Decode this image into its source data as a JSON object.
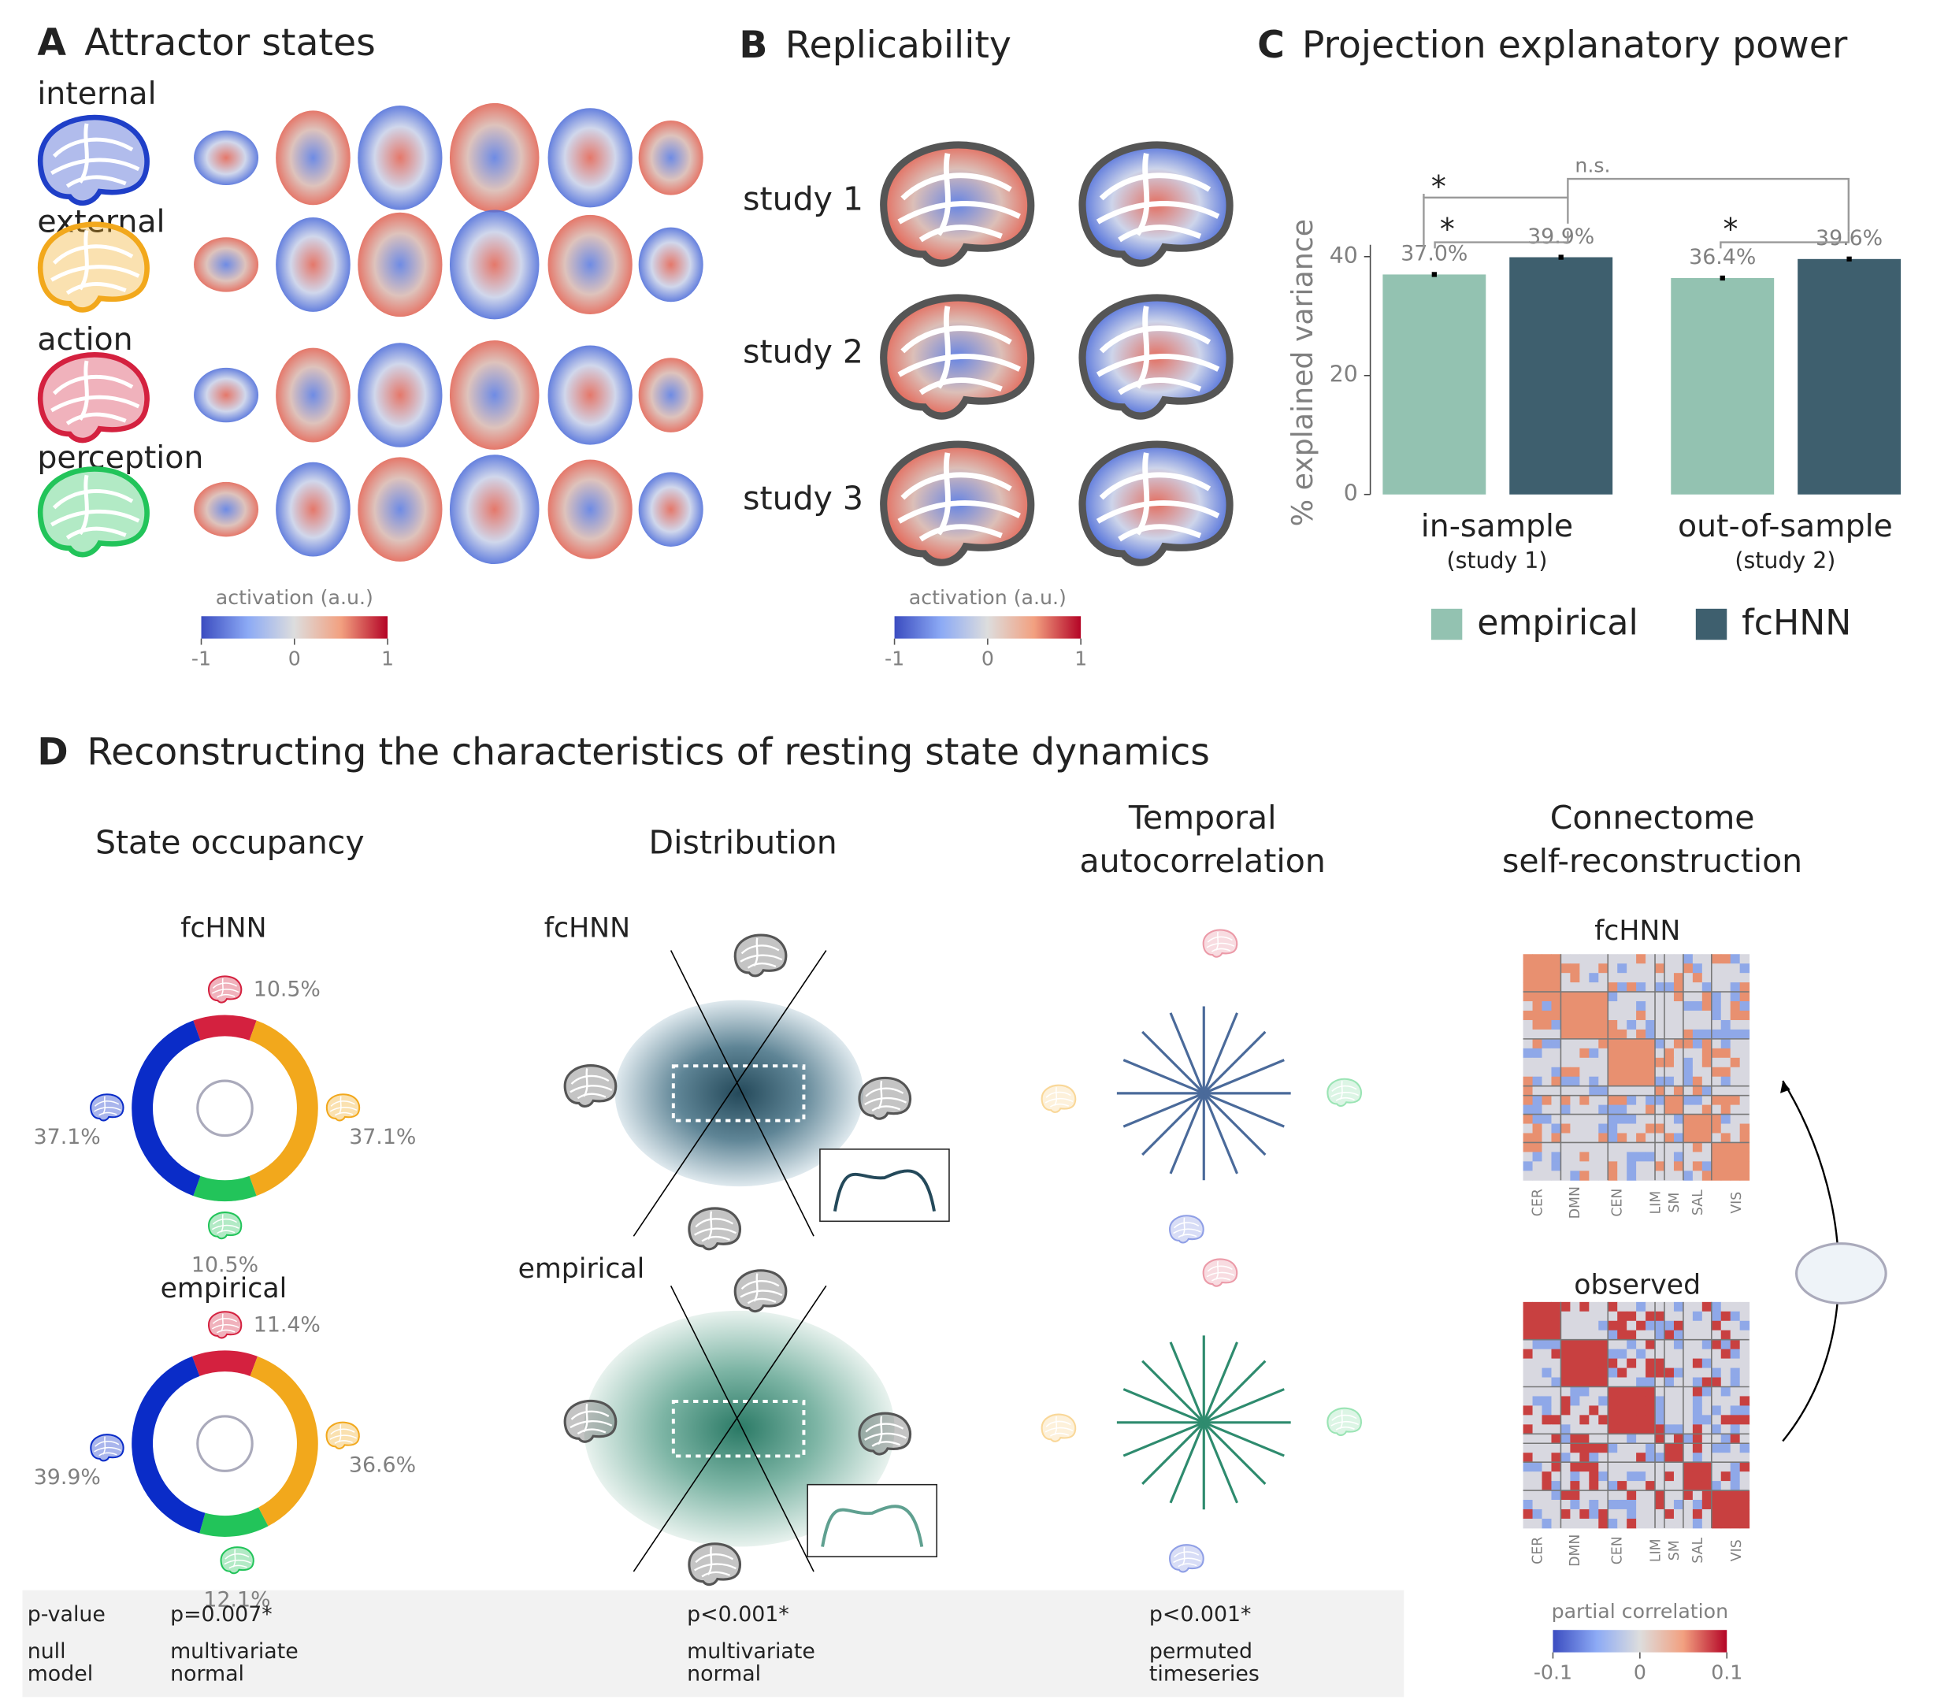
{
  "panels": {
    "a": {
      "letter": "A",
      "title": "Attractor states",
      "states": [
        "internal",
        "external",
        "action",
        "perception"
      ],
      "state_colors": [
        "#1f3fc8",
        "#f2a81c",
        "#d4213f",
        "#22c45a"
      ],
      "colorbar": {
        "label": "activation (a.u.)",
        "ticks": [
          -1,
          0,
          1
        ]
      }
    },
    "b": {
      "letter": "B",
      "title": "Replicability",
      "studies": [
        "study 1",
        "study 2",
        "study 3"
      ],
      "colorbar": {
        "label": "activation (a.u.)",
        "ticks": [
          -1,
          0,
          1
        ]
      }
    },
    "c": {
      "letter": "C",
      "title": "Projection explanatory power"
    },
    "d": {
      "letter": "D",
      "title": "Reconstructing the characteristics of resting state dynamics",
      "columns": [
        [
          "State occupancy"
        ],
        [
          "Distribution"
        ],
        [
          "Temporal",
          "autocorrelation"
        ],
        [
          "Connectome",
          "self-reconstruction"
        ]
      ],
      "distribution_labels": [
        "fcHNN",
        "empirical"
      ],
      "connectome_labels": [
        "fcHNN",
        "observed"
      ],
      "network_labels": [
        "CER",
        "DMN",
        "CEN",
        "LIM",
        "SM",
        "SAL",
        "VIS"
      ],
      "colorbar": {
        "label": "partial correlation",
        "ticks": [
          -0.1,
          0,
          0.1
        ]
      },
      "table": {
        "row_labels": [
          [
            "p-value"
          ],
          [
            "null",
            "model"
          ]
        ],
        "p_values": [
          "p=0.007*",
          "p<0.001*",
          "p<0.001*"
        ],
        "null_models": [
          [
            "multivariate",
            "normal"
          ],
          [
            "multivariate",
            "normal"
          ],
          [
            "permuted",
            "timeseries"
          ]
        ]
      }
    }
  },
  "chart_data": [
    {
      "type": "bar",
      "ylabel": "% explained variance",
      "categories": [
        "in-sample",
        "out-of-sample"
      ],
      "category_notes": [
        "(study 1)",
        "(study 2)"
      ],
      "series": [
        {
          "name": "empirical",
          "color": "#93c2b1",
          "values": [
            37.0,
            36.4
          ],
          "value_labels": [
            "37.0%",
            "36.4%"
          ]
        },
        {
          "name": "fcHNN",
          "color": "#3e5f6e",
          "values": [
            39.9,
            39.6
          ],
          "value_labels": [
            "39.9%",
            "39.6%"
          ]
        }
      ],
      "ylim": [
        0,
        42
      ],
      "yticks": [
        0,
        20,
        40
      ],
      "annotations": [
        "*",
        "*",
        "*",
        "n.s."
      ]
    },
    {
      "type": "pie",
      "title": "fcHNN",
      "colors": [
        "#d4213f",
        "#f2a81c",
        "#22c45a",
        "#0a2cc8"
      ],
      "values": [
        10.5,
        37.1,
        10.5,
        37.1
      ],
      "value_labels": [
        "10.5%",
        "37.1%",
        "10.5%",
        "37.1%"
      ]
    },
    {
      "type": "pie",
      "title": "empirical",
      "colors": [
        "#d4213f",
        "#f2a81c",
        "#22c45a",
        "#0a2cc8"
      ],
      "values": [
        11.4,
        36.6,
        12.1,
        39.9
      ],
      "value_labels": [
        "11.4%",
        "36.6%",
        "12.1%",
        "39.9%"
      ]
    }
  ]
}
